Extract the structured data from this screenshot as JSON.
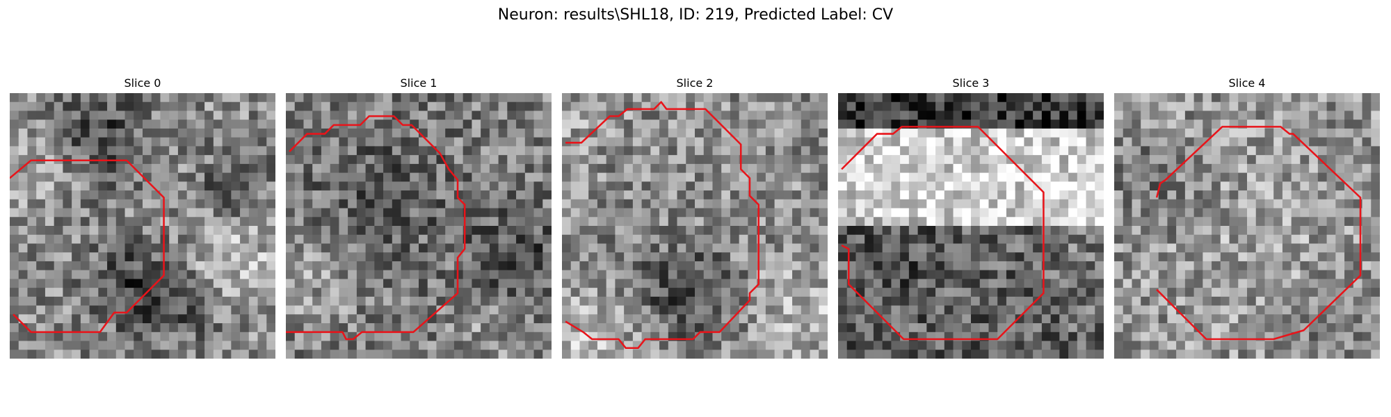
{
  "figure": {
    "title": "Neuron: results\\SHL18, ID: 219, Predicted Label: CV"
  },
  "panels": [
    {
      "title": "Slice 0"
    },
    {
      "title": "Slice 1"
    },
    {
      "title": "Slice 2"
    },
    {
      "title": "Slice 3"
    },
    {
      "title": "Slice 4"
    }
  ],
  "colors": {
    "contour": "#e8141a",
    "background": "#ffffff",
    "image_colormap": "gray"
  }
}
